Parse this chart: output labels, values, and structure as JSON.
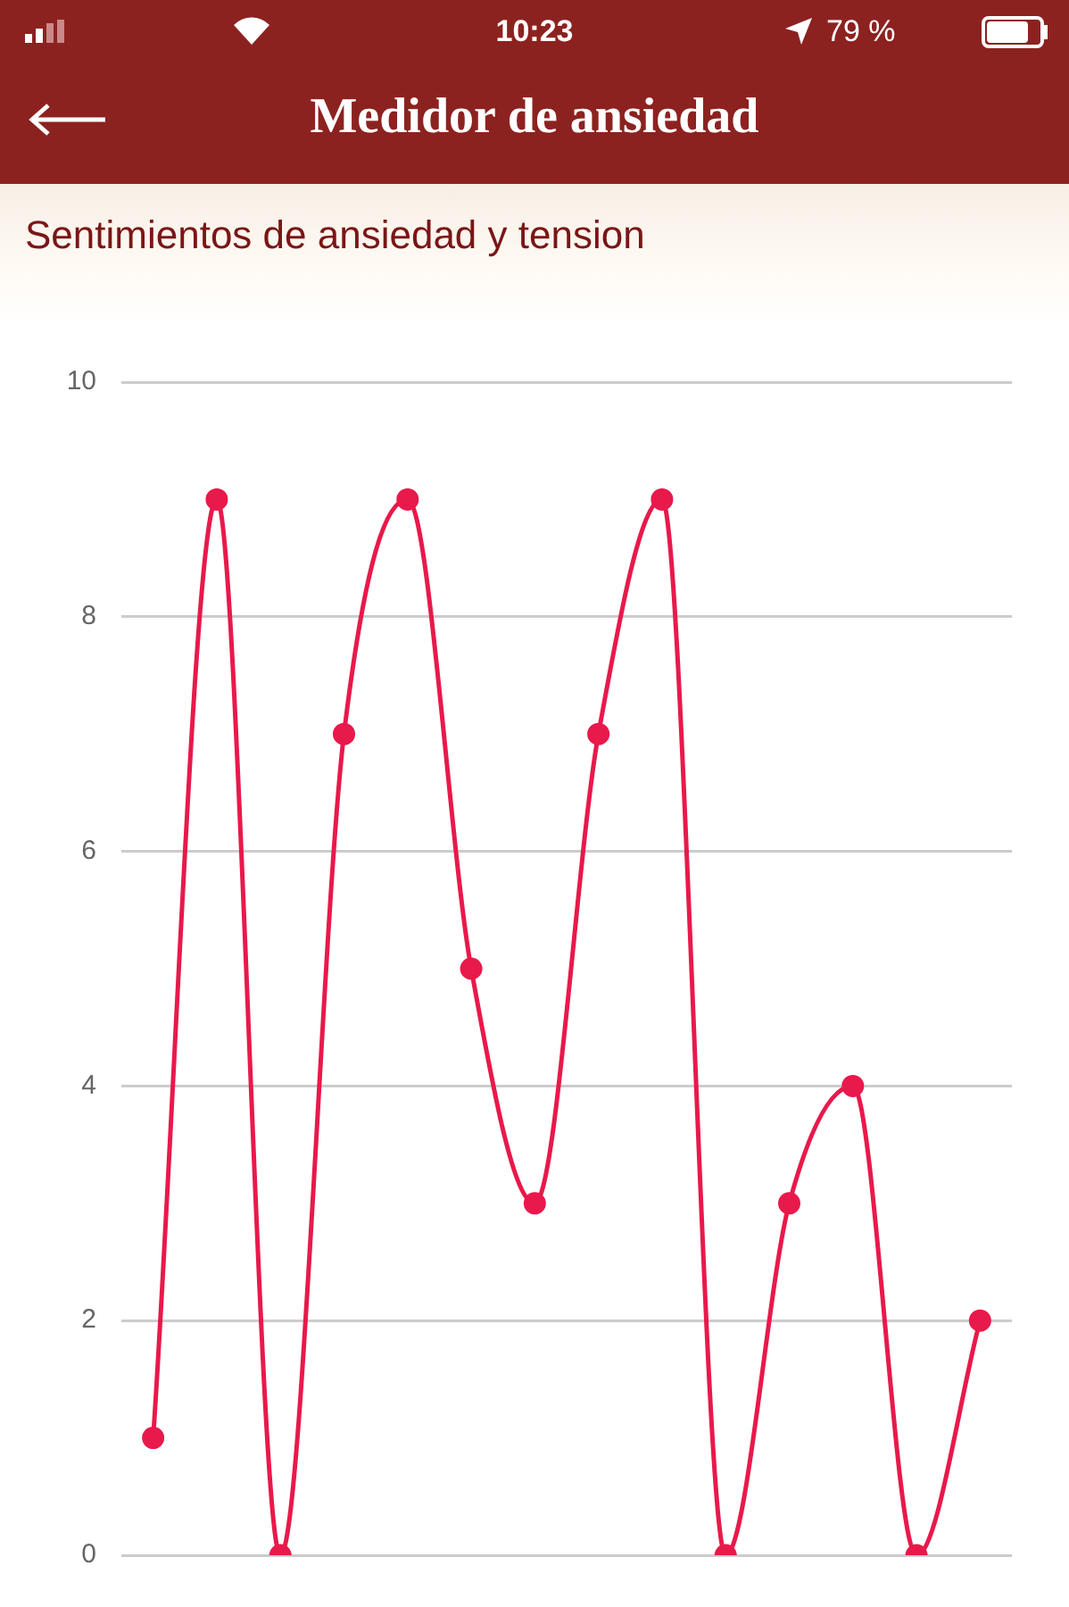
{
  "chart_data": {
    "type": "line",
    "title": "Medidor de ansiedad",
    "subtitle": "Sentimientos de ansiedad y tension",
    "annotations": [
      "10:23",
      "79 %"
    ],
    "categories": [
      null,
      null,
      null,
      null,
      null,
      null,
      null,
      null,
      null,
      null,
      null,
      null,
      null,
      null
    ],
    "values": [
      1,
      9,
      0,
      7,
      9,
      5,
      3,
      7,
      9,
      0,
      3,
      4,
      0,
      2
    ],
    "color": "#e8194b",
    "ylim": [
      0,
      10
    ],
    "yticks": [
      0,
      2,
      4,
      6,
      8,
      10
    ],
    "grid": "y",
    "marker": "circle",
    "line_style": "solid"
  }
}
